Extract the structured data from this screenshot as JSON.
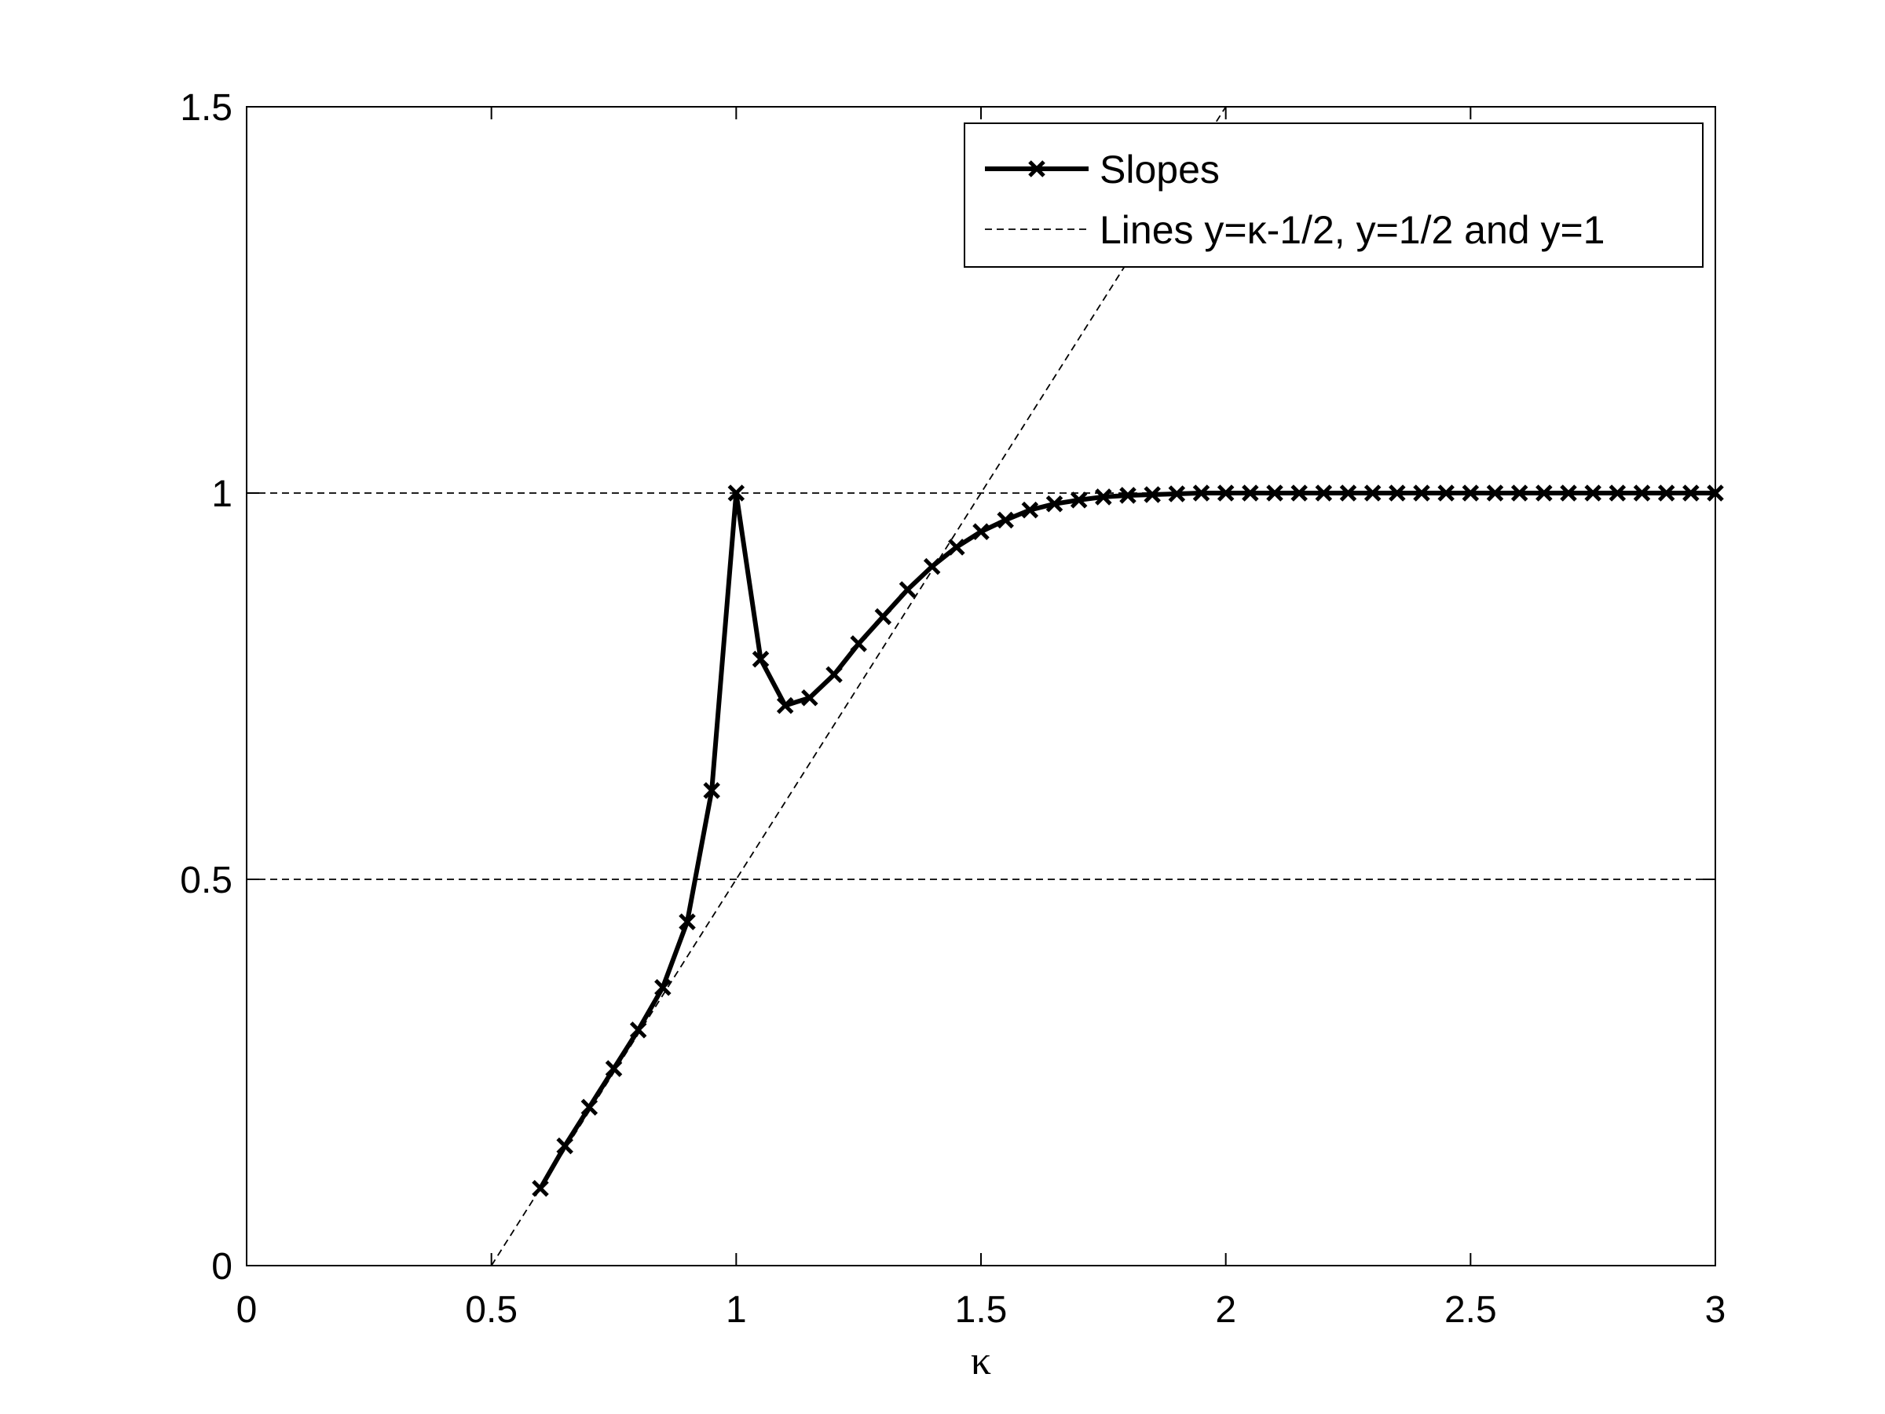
{
  "chart_data": {
    "type": "line",
    "title": "",
    "xlabel": "κ",
    "ylabel": "",
    "xlim": [
      0,
      3
    ],
    "ylim": [
      0,
      1.5
    ],
    "xticks": [
      0,
      0.5,
      1,
      1.5,
      2,
      2.5,
      3
    ],
    "xtick_labels": [
      "0",
      "0.5",
      "1",
      "1.5",
      "2",
      "2.5",
      "3"
    ],
    "yticks": [
      0,
      0.5,
      1,
      1.5
    ],
    "ytick_labels": [
      "0",
      "0.5",
      "1",
      "1.5"
    ],
    "grid": false,
    "legend": {
      "position": "top-right",
      "entries": [
        {
          "label": "Slopes",
          "style": "solid-x-marker"
        },
        {
          "label": "Lines y=κ-1/2, y=1/2 and y=1",
          "style": "dashed"
        }
      ]
    },
    "series": [
      {
        "name": "Slopes",
        "color": "#000000",
        "x": [
          0.6,
          0.65,
          0.7,
          0.75,
          0.8,
          0.85,
          0.9,
          0.95,
          1.0,
          1.05,
          1.1,
          1.15,
          1.2,
          1.25,
          1.3,
          1.35,
          1.4,
          1.45,
          1.5,
          1.55,
          1.6,
          1.65,
          1.7,
          1.75,
          1.8,
          1.85,
          1.9,
          1.95,
          2.0,
          2.05,
          2.1,
          2.15,
          2.2,
          2.25,
          2.3,
          2.35,
          2.4,
          2.45,
          2.5,
          2.55,
          2.6,
          2.65,
          2.7,
          2.75,
          2.8,
          2.85,
          2.9,
          2.95,
          3.0
        ],
        "y": [
          0.1,
          0.155,
          0.205,
          0.255,
          0.305,
          0.36,
          0.445,
          0.615,
          1.0,
          0.785,
          0.725,
          0.735,
          0.765,
          0.805,
          0.84,
          0.875,
          0.905,
          0.93,
          0.95,
          0.965,
          0.978,
          0.986,
          0.991,
          0.995,
          0.997,
          0.998,
          0.999,
          1.0,
          1.0,
          1.0,
          1.0,
          1.0,
          1.0,
          1.0,
          1.0,
          1.0,
          1.0,
          1.0,
          1.0,
          1.0,
          1.0,
          1.0,
          1.0,
          1.0,
          1.0,
          1.0,
          1.0,
          1.0,
          1.0
        ]
      },
      {
        "name": "Lines y=κ-1/2, y=1/2 and y=1",
        "color": "#000000",
        "style": "dashed",
        "lines": [
          {
            "x": [
              0.5,
              2.0
            ],
            "y": [
              0.0,
              1.5
            ]
          },
          {
            "x": [
              0.0,
              3.0
            ],
            "y": [
              0.5,
              0.5
            ]
          },
          {
            "x": [
              0.0,
              3.0
            ],
            "y": [
              1.0,
              1.0
            ]
          }
        ]
      }
    ]
  }
}
